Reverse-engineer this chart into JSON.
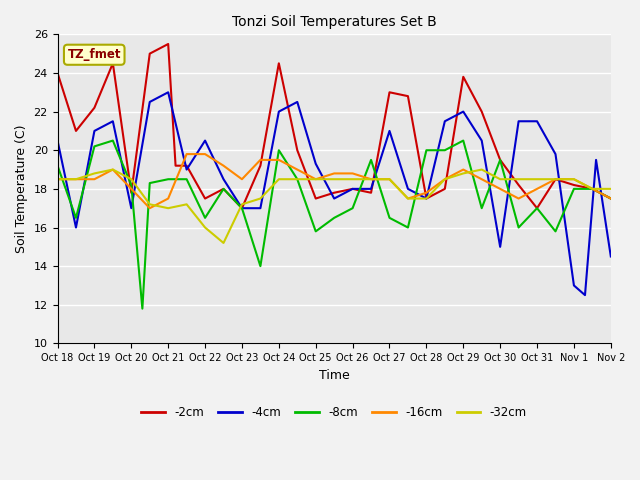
{
  "title": "Tonzi Soil Temperatures Set B",
  "xlabel": "Time",
  "ylabel": "Soil Temperature (C)",
  "annotation": "TZ_fmet",
  "ylim": [
    10,
    26
  ],
  "xlim": [
    0,
    15
  ],
  "background_color": "#e8e8e8",
  "grid_color": "#ffffff",
  "xtick_labels": [
    "Oct 18",
    "Oct 19",
    "Oct 20",
    "Oct 21",
    "Oct 22",
    "Oct 23",
    "Oct 24",
    "Oct 25",
    "Oct 26",
    "Oct 27",
    "Oct 28",
    "Oct 29",
    "Oct 30",
    "Oct 31",
    "Nov 1",
    "Nov 2"
  ],
  "series": {
    "-2cm": {
      "color": "#cc0000",
      "x": [
        0,
        0.5,
        1,
        1.5,
        2,
        2.5,
        3,
        3.2,
        3.5,
        4,
        4.5,
        5,
        5.5,
        6,
        6.5,
        7,
        7.5,
        8,
        8.5,
        9,
        9.5,
        10,
        10.5,
        11,
        11.5,
        12,
        12.5,
        13,
        13.5,
        14,
        14.5,
        15
      ],
      "y": [
        24.0,
        21.0,
        22.2,
        24.5,
        17.8,
        25.0,
        25.5,
        19.2,
        19.2,
        17.5,
        18.0,
        17.0,
        19.2,
        24.5,
        20.0,
        17.5,
        17.8,
        18.0,
        17.8,
        23.0,
        22.8,
        17.5,
        18.0,
        23.8,
        22.0,
        19.5,
        18.2,
        17.0,
        18.5,
        18.2,
        18.0,
        17.5
      ]
    },
    "-4cm": {
      "color": "#0000cc",
      "x": [
        0,
        0.5,
        1,
        1.5,
        2,
        2.5,
        3,
        3.5,
        4,
        4.5,
        5,
        5.5,
        6,
        6.5,
        7,
        7.5,
        8,
        8.5,
        9,
        9.5,
        10,
        10.5,
        11,
        11.5,
        12,
        12.5,
        13,
        13.5,
        14,
        14.3,
        14.6,
        15
      ],
      "y": [
        20.5,
        16.0,
        21.0,
        21.5,
        17.0,
        22.5,
        23.0,
        19.0,
        20.5,
        18.5,
        17.0,
        17.0,
        22.0,
        22.5,
        19.3,
        17.5,
        18.0,
        18.0,
        21.0,
        18.0,
        17.5,
        21.5,
        22.0,
        20.5,
        15.0,
        21.5,
        21.5,
        19.8,
        13.0,
        12.5,
        19.5,
        14.5
      ]
    },
    "-8cm": {
      "color": "#00bb00",
      "x": [
        0,
        0.5,
        1,
        1.5,
        2,
        2.3,
        2.5,
        3,
        3.5,
        4,
        4.5,
        5,
        5.5,
        6,
        6.5,
        7,
        7.5,
        8,
        8.5,
        9,
        9.5,
        10,
        10.5,
        11,
        11.5,
        12,
        12.5,
        13,
        13.5,
        14,
        14.5,
        15
      ],
      "y": [
        19.2,
        16.5,
        20.2,
        20.5,
        18.2,
        11.8,
        18.3,
        18.5,
        18.5,
        16.5,
        18.0,
        17.0,
        14.0,
        20.0,
        18.5,
        15.8,
        16.5,
        17.0,
        19.5,
        16.5,
        16.0,
        20.0,
        20.0,
        20.5,
        17.0,
        19.5,
        16.0,
        17.0,
        15.8,
        18.0,
        18.0,
        17.5
      ]
    },
    "-16cm": {
      "color": "#ff8800",
      "x": [
        0,
        0.5,
        1,
        1.5,
        2,
        2.5,
        3,
        3.5,
        4,
        4.5,
        5,
        5.5,
        6,
        6.5,
        7,
        7.5,
        8,
        8.5,
        9,
        9.5,
        10,
        10.5,
        11,
        11.5,
        12,
        12.5,
        13,
        13.5,
        14,
        14.5,
        15
      ],
      "y": [
        18.5,
        18.5,
        18.5,
        19.0,
        18.0,
        17.0,
        17.5,
        19.8,
        19.8,
        19.2,
        18.5,
        19.5,
        19.5,
        19.0,
        18.5,
        18.8,
        18.8,
        18.5,
        18.5,
        17.5,
        17.8,
        18.5,
        19.0,
        18.5,
        18.0,
        17.5,
        18.0,
        18.5,
        18.5,
        18.0,
        17.5
      ]
    },
    "-32cm": {
      "color": "#cccc00",
      "x": [
        0,
        0.5,
        1,
        1.5,
        2,
        2.5,
        3,
        3.5,
        4,
        4.5,
        5,
        5.5,
        6,
        6.5,
        7,
        7.5,
        8,
        8.5,
        9,
        9.5,
        10,
        10.5,
        11,
        11.5,
        12,
        12.5,
        13,
        13.5,
        14,
        14.5,
        15
      ],
      "y": [
        18.5,
        18.5,
        18.8,
        19.0,
        18.5,
        17.2,
        17.0,
        17.2,
        16.0,
        15.2,
        17.2,
        17.5,
        18.5,
        18.5,
        18.5,
        18.5,
        18.5,
        18.5,
        18.5,
        17.5,
        17.5,
        18.5,
        18.8,
        19.0,
        18.5,
        18.5,
        18.5,
        18.5,
        18.5,
        18.0,
        18.0
      ]
    }
  },
  "legend": [
    {
      "label": "-2cm",
      "color": "#cc0000"
    },
    {
      "label": "-4cm",
      "color": "#0000cc"
    },
    {
      "label": "-8cm",
      "color": "#00bb00"
    },
    {
      "label": "-16cm",
      "color": "#ff8800"
    },
    {
      "label": "-32cm",
      "color": "#cccc00"
    }
  ]
}
